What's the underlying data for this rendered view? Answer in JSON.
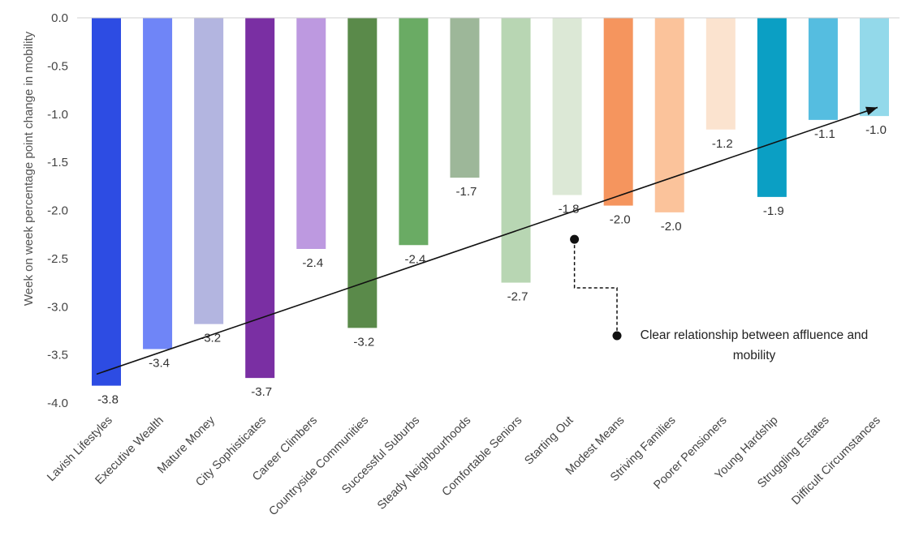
{
  "chart_data": {
    "type": "bar",
    "title": "",
    "xlabel": "",
    "ylabel": "Week on week percentage point change in mobility",
    "ylim": [
      -4.0,
      0.0
    ],
    "yticks": [
      "0.0",
      "-0.5",
      "-1.0",
      "-1.5",
      "-2.0",
      "-2.5",
      "-3.0",
      "-3.5",
      "-4.0"
    ],
    "grid": false,
    "legend": "none",
    "categories": [
      "Lavish Lifestyles",
      "Executive Wealth",
      "Mature Money",
      "City Sophisticates",
      "Career Climbers",
      "Countryside Communities",
      "Successful Suburbs",
      "Steady Neighbourhoods",
      "Comfortable Seniors",
      "Starting Out",
      "Modest Means",
      "Striving Families",
      "Poorer Pensioners",
      "Young Hardship",
      "Struggling Estates",
      "Difficult Circumstances"
    ],
    "values": [
      -3.82,
      -3.44,
      -3.18,
      -3.74,
      -2.4,
      -3.22,
      -2.36,
      -1.66,
      -2.75,
      -1.84,
      -1.95,
      -2.02,
      -1.16,
      -1.86,
      -1.06,
      -1.02
    ],
    "data_labels": [
      "-3.8",
      "-3.4",
      "-3.2",
      "-3.7",
      "-2.4",
      "-3.2",
      "-2.4",
      "-1.7",
      "-2.7",
      "-1.8",
      "-2.0",
      "-2.0",
      "-1.2",
      "-1.9",
      "-1.1",
      "-1.0"
    ],
    "colors": [
      "#2d4ce3",
      "#6f85f7",
      "#b3b5e0",
      "#7a2fa3",
      "#bd99e0",
      "#5a8a4a",
      "#6aab64",
      "#9db799",
      "#b8d6b3",
      "#dce8d6",
      "#f5955e",
      "#fbc39b",
      "#fbe3cf",
      "#0b9fc4",
      "#55bde0",
      "#93d9ea"
    ],
    "trend_line": {
      "from": {
        "x": "Lavish Lifestyles",
        "y": -3.7
      },
      "to": {
        "x": "Difficult Circumstances",
        "y": -0.93
      }
    },
    "annotation": {
      "lines": [
        "Clear relationship between affluence and",
        "mobility"
      ],
      "points_to": {
        "x": "Starting Out",
        "y": -2.3
      }
    }
  }
}
